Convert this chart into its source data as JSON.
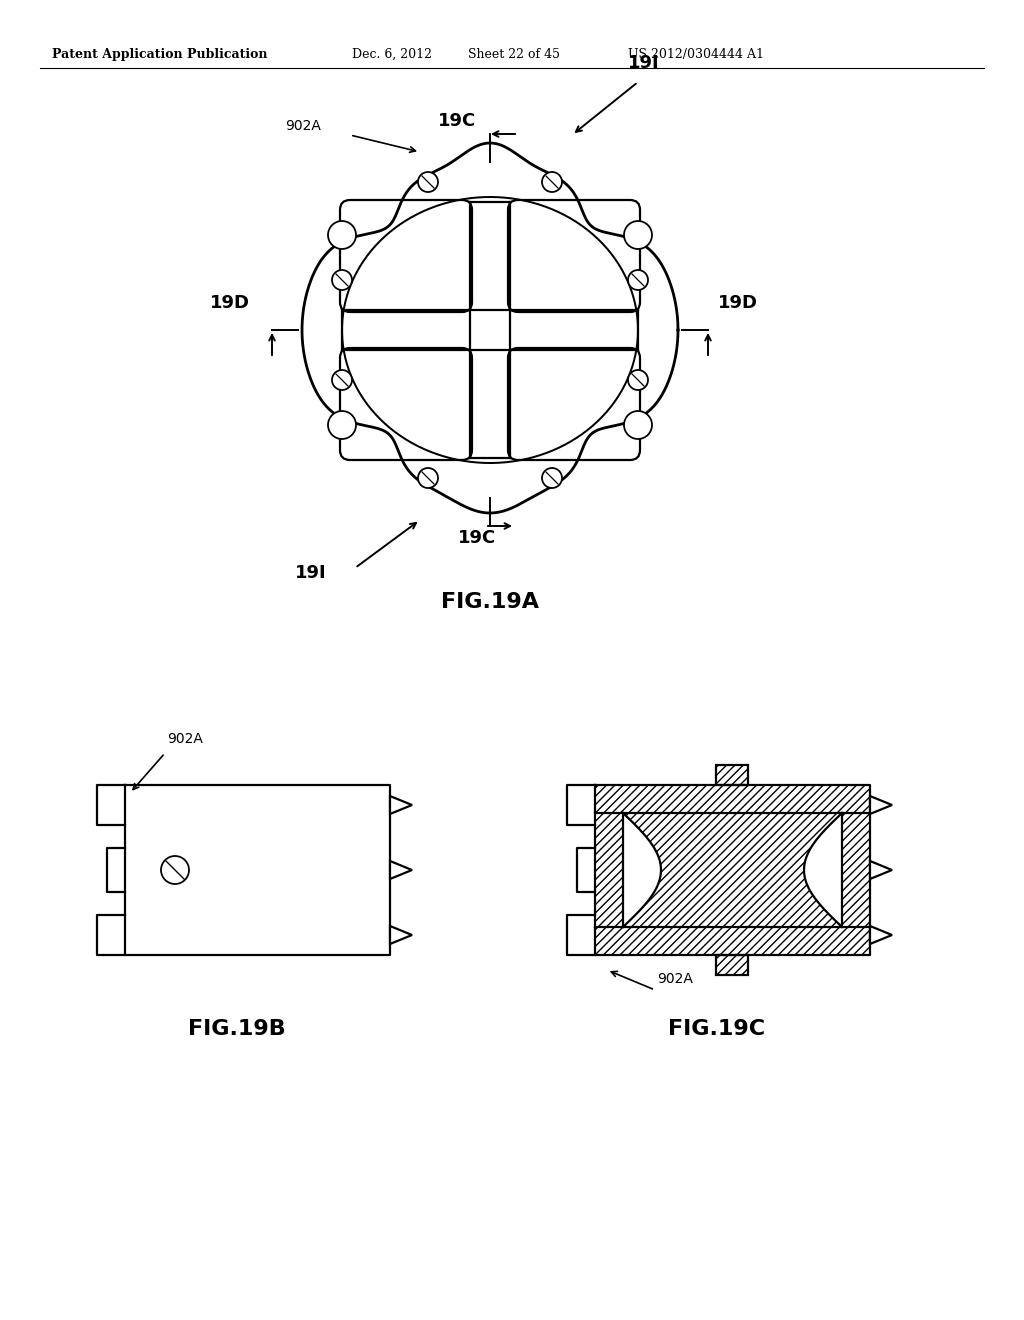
{
  "bg_color": "#ffffff",
  "line_color": "#000000",
  "header_text": "Patent Application Publication",
  "header_date": "Dec. 6, 2012",
  "header_sheet": "Sheet 22 of 45",
  "header_patent": "US 2012/0304444 A1",
  "fig19a_label": "FIG.19A",
  "fig19b_label": "FIG.19B",
  "fig19c_label": "FIG.19C"
}
